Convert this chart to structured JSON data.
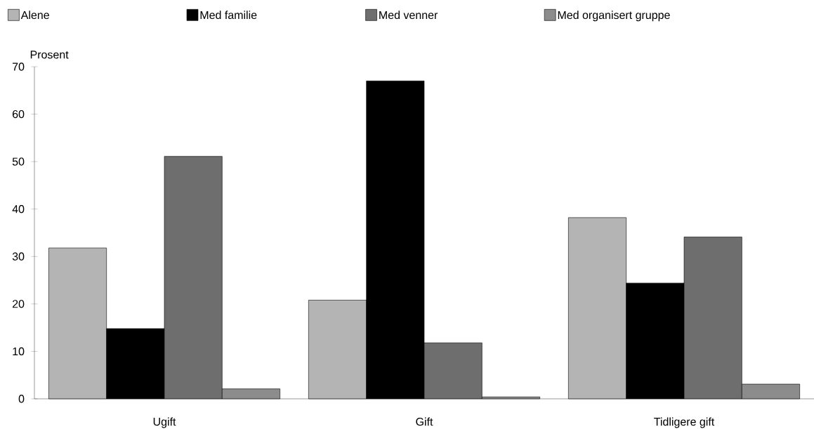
{
  "chart_data": {
    "type": "bar",
    "ylabel": "Prosent",
    "categories": [
      "Ugift",
      "Gift",
      "Tidligere gift"
    ],
    "series": [
      {
        "name": "Alene",
        "color": "#b4b4b4",
        "values": [
          31.8,
          20.8,
          38.2
        ]
      },
      {
        "name": "Med familie",
        "color": "#000000",
        "values": [
          14.8,
          67.0,
          24.4
        ]
      },
      {
        "name": "Med venner",
        "color": "#6e6e6e",
        "values": [
          51.1,
          11.8,
          34.1
        ]
      },
      {
        "name": "Med organisert gruppe",
        "color": "#8c8c8c",
        "values": [
          2.1,
          0.4,
          3.1
        ]
      }
    ],
    "ylim": [
      0,
      70
    ],
    "yticks": [
      0,
      10,
      20,
      30,
      40,
      50,
      60,
      70
    ],
    "grid": false,
    "legend": "top"
  }
}
